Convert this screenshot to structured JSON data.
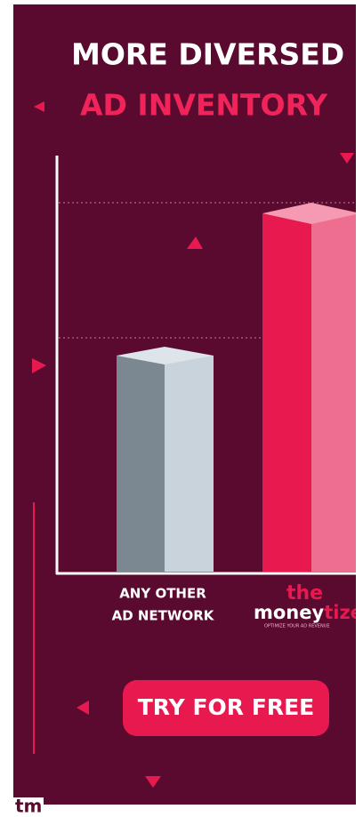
{
  "header": {
    "title_line1": "MORE DIVERSED",
    "title_line2": "AD INVENTORY"
  },
  "bars": [
    {
      "label_line1": "ANY OTHER",
      "label_line2": "AD NETWORK"
    },
    {
      "logo_top": "the",
      "logo_main": "money",
      "logo_accent": "tize",
      "logo_tagline": "OPTIMIZE YOUR AD REVENUE"
    }
  ],
  "button": {
    "label": "TRY FOR FREE"
  },
  "footer": {
    "badge": "tm"
  }
}
